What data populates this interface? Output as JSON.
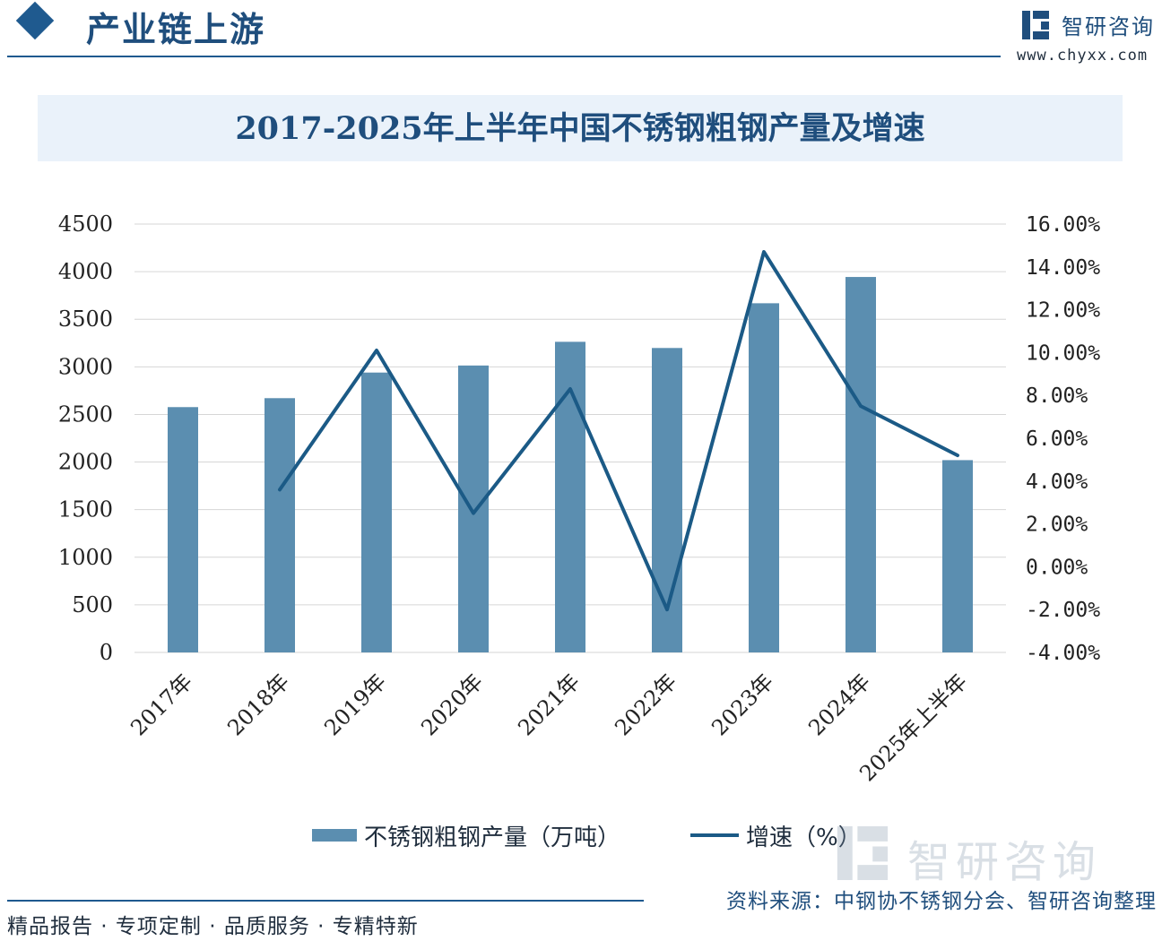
{
  "header": {
    "section_title": "产业链上游",
    "brand_name": "智研咨询",
    "brand_url": "www.chyxx.com"
  },
  "chart_title": "2017-2025年上半年中国不锈钢粗钢产量及增速",
  "chart_data": {
    "type": "bar",
    "categories": [
      "2017年",
      "2018年",
      "2019年",
      "2020年",
      "2021年",
      "2022年",
      "2023年",
      "2024年",
      "2025年上半年"
    ],
    "series": [
      {
        "name": "不锈钢粗钢产量（万吨）",
        "type": "bar",
        "axis": "left",
        "color": "#5b8eb0",
        "values": [
          2577,
          2671,
          2940,
          3014,
          3263,
          3198,
          3668,
          3944,
          2020
        ]
      },
      {
        "name": "增速（%）",
        "type": "line",
        "axis": "right",
        "color": "#1b5a86",
        "values": [
          null,
          3.6,
          10.1,
          2.5,
          8.3,
          -2.0,
          14.7,
          7.5,
          5.2
        ]
      }
    ],
    "y_left": {
      "min": 0,
      "max": 4500,
      "step": 500
    },
    "y_right": {
      "min": -4,
      "max": 16,
      "step": 2
    },
    "y_left_ticks": [
      "0",
      "500",
      "1000",
      "1500",
      "2000",
      "2500",
      "3000",
      "3500",
      "4000",
      "4500"
    ],
    "y_right_ticks": [
      "-4.00%",
      "-2.00%",
      "0.00%",
      "2.00%",
      "4.00%",
      "6.00%",
      "8.00%",
      "10.00%",
      "12.00%",
      "14.00%",
      "16.00%"
    ],
    "grid": true,
    "legend_position": "bottom"
  },
  "legend": {
    "bar_label": "不锈钢粗钢产量（万吨）",
    "line_label": "增速（%）"
  },
  "watermark": {
    "text": "智研咨询"
  },
  "footer": {
    "tagline": "精品报告 · 专项定制 · 品质服务 · 专精特新",
    "source": "资料来源：中钢协不锈钢分会、智研咨询整理"
  }
}
